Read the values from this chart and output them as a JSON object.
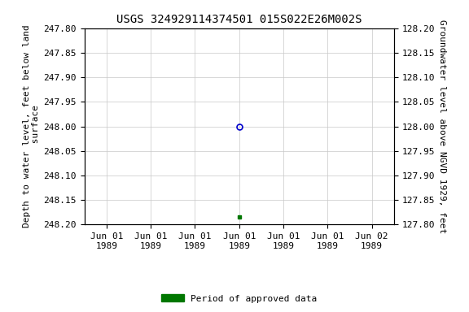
{
  "title": "USGS 324929114374501 015S022E26M002S",
  "ylabel_left": "Depth to water level, feet below land\n surface",
  "ylabel_right": "Groundwater level above NGVD 1929, feet",
  "ylim_left": [
    247.8,
    248.2
  ],
  "ylim_right": [
    127.8,
    128.2
  ],
  "yticks_left": [
    247.8,
    247.85,
    247.9,
    247.95,
    248.0,
    248.05,
    248.1,
    248.15,
    248.2
  ],
  "yticks_right": [
    128.2,
    128.15,
    128.1,
    128.05,
    128.0,
    127.95,
    127.9,
    127.85,
    127.8
  ],
  "point_blue_x": 3.0,
  "point_blue_value": 248.0,
  "point_green_x": 3.0,
  "point_green_value": 248.185,
  "blue_color": "#0000cc",
  "green_color": "#007700",
  "legend_label": "Period of approved data",
  "background_color": "#ffffff",
  "grid_color": "#c8c8c8",
  "title_fontsize": 10,
  "axis_label_fontsize": 8,
  "tick_fontsize": 8,
  "xtick_labels": [
    "Jun 01\n1989",
    "Jun 01\n1989",
    "Jun 01\n1989",
    "Jun 01\n1989",
    "Jun 01\n1989",
    "Jun 01\n1989",
    "Jun 02\n1989"
  ],
  "xlim": [
    -0.5,
    6.5
  ]
}
